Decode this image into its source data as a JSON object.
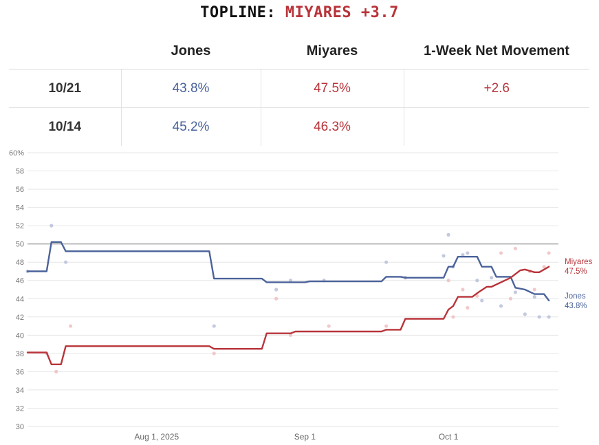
{
  "header": {
    "title_prefix": "TOPLINE:",
    "title_lead": "MIYARES +3.7"
  },
  "table": {
    "columns": [
      "",
      "Jones",
      "Miyares",
      "1-Week Net Movement"
    ],
    "rows": [
      {
        "date": "10/21",
        "jones": "43.8%",
        "miyares": "47.5%",
        "net": "+2.6"
      },
      {
        "date": "10/14",
        "jones": "45.2%",
        "miyares": "46.3%",
        "net": ""
      }
    ]
  },
  "colors": {
    "jones": "#4a629a",
    "miyares": "#b8343a",
    "reference_line": "#aaaaaa",
    "grid": "#e6e6e6"
  },
  "chart_data": {
    "type": "line",
    "xlim": [
      "2025-07-05",
      "2025-10-24"
    ],
    "ylim": [
      30,
      60
    ],
    "yticks": [
      "60%",
      "58",
      "56",
      "54",
      "52",
      "50",
      "48",
      "46",
      "44",
      "42",
      "40",
      "38",
      "36",
      "34",
      "32",
      "30"
    ],
    "xticks": [
      {
        "date": "2025-08-01",
        "label": "Aug 1, 2025"
      },
      {
        "date": "2025-09-01",
        "label": "Sep 1"
      },
      {
        "date": "2025-10-01",
        "label": "Oct 1"
      }
    ],
    "reference_line": 50,
    "grid": true,
    "series": [
      {
        "name": "Jones",
        "end_label": "Jones",
        "end_value_label": "43.8%",
        "x": [
          "2025-07-05",
          "2025-07-09",
          "2025-07-10",
          "2025-07-12",
          "2025-07-13",
          "2025-08-12",
          "2025-08-13",
          "2025-08-23",
          "2025-08-24",
          "2025-09-01",
          "2025-09-02",
          "2025-09-17",
          "2025-09-18",
          "2025-09-21",
          "2025-09-22",
          "2025-09-30",
          "2025-10-01",
          "2025-10-02",
          "2025-10-03",
          "2025-10-07",
          "2025-10-08",
          "2025-10-10",
          "2025-10-11",
          "2025-10-14",
          "2025-10-15",
          "2025-10-17",
          "2025-10-19",
          "2025-10-21",
          "2025-10-22"
        ],
        "values": [
          47.0,
          47.0,
          50.2,
          50.2,
          49.2,
          49.2,
          46.2,
          46.2,
          45.8,
          45.8,
          45.9,
          45.9,
          46.4,
          46.4,
          46.3,
          46.3,
          47.5,
          47.5,
          48.6,
          48.6,
          47.5,
          47.5,
          46.4,
          46.4,
          45.2,
          45.0,
          44.5,
          44.5,
          43.8
        ]
      },
      {
        "name": "Miyares",
        "end_label": "Miyares",
        "end_value_label": "47.5%",
        "x": [
          "2025-07-05",
          "2025-07-09",
          "2025-07-10",
          "2025-07-12",
          "2025-07-13",
          "2025-08-12",
          "2025-08-13",
          "2025-08-23",
          "2025-08-24",
          "2025-08-29",
          "2025-08-30",
          "2025-09-17",
          "2025-09-18",
          "2025-09-21",
          "2025-09-22",
          "2025-09-30",
          "2025-10-01",
          "2025-10-02",
          "2025-10-03",
          "2025-10-06",
          "2025-10-07",
          "2025-10-09",
          "2025-10-10",
          "2025-10-14",
          "2025-10-16",
          "2025-10-17",
          "2025-10-19",
          "2025-10-20",
          "2025-10-22"
        ],
        "values": [
          38.1,
          38.1,
          36.8,
          36.8,
          38.8,
          38.8,
          38.5,
          38.5,
          40.2,
          40.2,
          40.4,
          40.4,
          40.6,
          40.6,
          41.8,
          41.8,
          42.8,
          43.2,
          44.2,
          44.2,
          44.6,
          45.3,
          45.3,
          46.3,
          47.1,
          47.2,
          46.9,
          46.9,
          47.5
        ]
      }
    ],
    "polls": {
      "jones": [
        {
          "x": "2025-07-05",
          "y": 47
        },
        {
          "x": "2025-07-10",
          "y": 52
        },
        {
          "x": "2025-07-13",
          "y": 48
        },
        {
          "x": "2025-08-13",
          "y": 41
        },
        {
          "x": "2025-08-26",
          "y": 45
        },
        {
          "x": "2025-08-29",
          "y": 46
        },
        {
          "x": "2025-09-05",
          "y": 46
        },
        {
          "x": "2025-09-18",
          "y": 48
        },
        {
          "x": "2025-09-22",
          "y": 46.3
        },
        {
          "x": "2025-09-30",
          "y": 48.7
        },
        {
          "x": "2025-10-01",
          "y": 51
        },
        {
          "x": "2025-10-02",
          "y": 47.5
        },
        {
          "x": "2025-10-04",
          "y": 48.8
        },
        {
          "x": "2025-10-05",
          "y": 49
        },
        {
          "x": "2025-10-07",
          "y": 46
        },
        {
          "x": "2025-10-08",
          "y": 43.8
        },
        {
          "x": "2025-10-10",
          "y": 46.3
        },
        {
          "x": "2025-10-12",
          "y": 43.2
        },
        {
          "x": "2025-10-15",
          "y": 44.7
        },
        {
          "x": "2025-10-17",
          "y": 42.3
        },
        {
          "x": "2025-10-19",
          "y": 44.2
        },
        {
          "x": "2025-10-20",
          "y": 42
        },
        {
          "x": "2025-10-22",
          "y": 42
        }
      ],
      "miyares": [
        {
          "x": "2025-07-09",
          "y": 38
        },
        {
          "x": "2025-07-11",
          "y": 36
        },
        {
          "x": "2025-07-14",
          "y": 41
        },
        {
          "x": "2025-08-13",
          "y": 38
        },
        {
          "x": "2025-08-26",
          "y": 44
        },
        {
          "x": "2025-08-29",
          "y": 40
        },
        {
          "x": "2025-09-06",
          "y": 41
        },
        {
          "x": "2025-09-18",
          "y": 41
        },
        {
          "x": "2025-09-22",
          "y": 46.3
        },
        {
          "x": "2025-10-01",
          "y": 46
        },
        {
          "x": "2025-10-02",
          "y": 42
        },
        {
          "x": "2025-10-04",
          "y": 45
        },
        {
          "x": "2025-10-05",
          "y": 43
        },
        {
          "x": "2025-10-07",
          "y": 44.3
        },
        {
          "x": "2025-10-12",
          "y": 49
        },
        {
          "x": "2025-10-14",
          "y": 44
        },
        {
          "x": "2025-10-15",
          "y": 49.5
        },
        {
          "x": "2025-10-18",
          "y": 47
        },
        {
          "x": "2025-10-19",
          "y": 45
        },
        {
          "x": "2025-10-21",
          "y": 47.5
        },
        {
          "x": "2025-10-22",
          "y": 49
        }
      ]
    }
  }
}
